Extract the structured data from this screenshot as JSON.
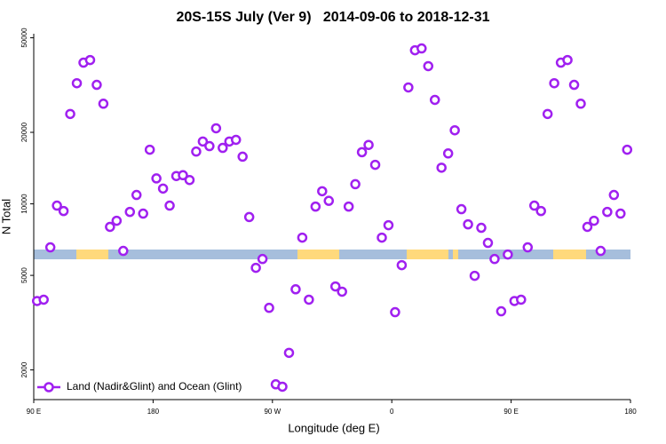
{
  "chart_data": {
    "type": "scatter",
    "title": "20S-15S July (Ver 9)   2014-09-06 to 2018-12-31",
    "x_label": "Longitude (deg E)",
    "y_label": "N Total",
    "log_scale_y": true,
    "legend": "bottom-left",
    "xlim": [
      90,
      540
    ],
    "xticks": [
      {
        "value": 90,
        "label": "90 E"
      },
      180,
      {
        "value": 270,
        "label": "90 W"
      },
      {
        "value": 360,
        "label": "0"
      },
      {
        "value": 450,
        "label": "90 E"
      },
      {
        "value": 540,
        "label": "180"
      }
    ],
    "ylim": [
      1500,
      52000
    ],
    "yticks": [
      2000,
      5000,
      10000,
      20000,
      50000
    ],
    "x": [
      92.5,
      97.5,
      102.5,
      107.5,
      112.5,
      117.5,
      122.5,
      127.5,
      132.5,
      137.5,
      142.5,
      147.5,
      152.5,
      157.5,
      162.5,
      167.5,
      172.5,
      177.5,
      182.5,
      187.5,
      192.5,
      197.5,
      202.5,
      207.5,
      212.5,
      217.5,
      222.5,
      227.5,
      232.5,
      237.5,
      242.5,
      247.5,
      252.5,
      257.5,
      262.5,
      267.5,
      272.5,
      277.5,
      282.5,
      287.5,
      292.5,
      297.5,
      302.5,
      307.5,
      312.5,
      317.5,
      322.5,
      327.5,
      332.5,
      337.5,
      342.5,
      347.5,
      352.5,
      357.5,
      362.5,
      367.5,
      372.5,
      377.5,
      382.5,
      387.5,
      392.5,
      397.5,
      402.5,
      407.5,
      412.5,
      417.5,
      422.5,
      427.5,
      432.5,
      437.5,
      442.5,
      447.5,
      452.5,
      457.5,
      462.5,
      467.5,
      472.5,
      477.5,
      482.5,
      487.5,
      492.5,
      497.5,
      502.5,
      507.5,
      512.5,
      517.5,
      522.5,
      527.5,
      532.5,
      537.5
    ],
    "series": [
      {
        "name": "Land (Nadir&Glint) and Ocean (Glint)",
        "color": "#a020f0",
        "values": [
          3900,
          3950,
          6560,
          9830,
          9330,
          23900,
          32200,
          39300,
          40300,
          31700,
          26400,
          8000,
          8490,
          6340,
          9250,
          10900,
          9100,
          16900,
          12800,
          11600,
          9830,
          13100,
          13200,
          12600,
          16600,
          18300,
          17500,
          20800,
          17200,
          18300,
          18600,
          15800,
          8800,
          5380,
          5860,
          3650,
          1740,
          1700,
          2360,
          4370,
          7210,
          3950,
          9740,
          11300,
          10300,
          4490,
          4270,
          9740,
          12100,
          16500,
          17700,
          14600,
          7210,
          8130,
          3500,
          5520,
          30900,
          44300,
          45100,
          38000,
          27400,
          14200,
          16300,
          20400,
          9500,
          8200,
          4980,
          7930,
          6850,
          5860,
          3530,
          6120,
          3900,
          3950,
          6560,
          9830,
          9330,
          23900,
          32200,
          39300,
          40300,
          31700,
          26400,
          8000,
          8490,
          6340,
          9250,
          10900,
          9100,
          16900
        ]
      }
    ]
  }
}
